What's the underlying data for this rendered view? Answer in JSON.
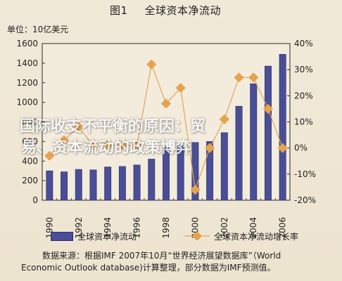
{
  "figure": {
    "number": "图1",
    "title": "全球资本净流动",
    "unit": "单位：10亿美元"
  },
  "colors": {
    "bar": "#4a4e96",
    "line": "#e0a45a",
    "marker": "#e6a24e",
    "background": "#ede4d0"
  },
  "chart_data": {
    "type": "bar",
    "title": "全球资本净流动",
    "xlabel": "",
    "ylabel": "单位：10亿美元",
    "categories": [
      "1990",
      "1991",
      "1992",
      "1993",
      "1994",
      "1995",
      "1996",
      "1997",
      "1998",
      "1999",
      "2000",
      "2001",
      "2002",
      "2003",
      "2004",
      "2005",
      "2006"
    ],
    "x_tick_labels": [
      "1990",
      "1992",
      "1994",
      "1996",
      "1998",
      "2000",
      "2002",
      "2004",
      "2006"
    ],
    "left_axis": {
      "ylim": [
        0,
        1600
      ],
      "ticks": [
        "0",
        "200",
        "400",
        "600",
        "800",
        "1000",
        "1200",
        "1400",
        "1600"
      ]
    },
    "right_axis": {
      "ylim": [
        -20,
        40
      ],
      "ticks": [
        "-20%",
        "-10%",
        "0%",
        "10%",
        "20%",
        "30%",
        "40%"
      ]
    },
    "series": [
      {
        "name": "全球资本净流动",
        "type": "bar",
        "axis": "left",
        "values": [
          300,
          290,
          315,
          310,
          340,
          345,
          360,
          420,
          540,
          560,
          590,
          600,
          690,
          960,
          1190,
          1370,
          1490
        ]
      },
      {
        "name": "全球资本净流动增长率",
        "type": "line",
        "axis": "right",
        "values": [
          -3,
          3,
          8,
          1,
          1,
          1,
          1,
          32,
          17,
          23,
          -16,
          0,
          11,
          27,
          27,
          15,
          0
        ]
      }
    ],
    "legend_position": "bottom",
    "grid": false
  },
  "legend": {
    "bar_label": "全球资本净流动",
    "line_label": "全球资本净流动增长率"
  },
  "source": {
    "line1": "数据来源：根据IMF 2007年10月“世界经济展望数据库”（World",
    "line2": "Economic Outlook database)计算整理，部分数据为IMF预测值。"
  },
  "overlay": {
    "line1": "国际收支不平衡的原因：贸",
    "line2": "易、资本流动的政策博弈"
  }
}
